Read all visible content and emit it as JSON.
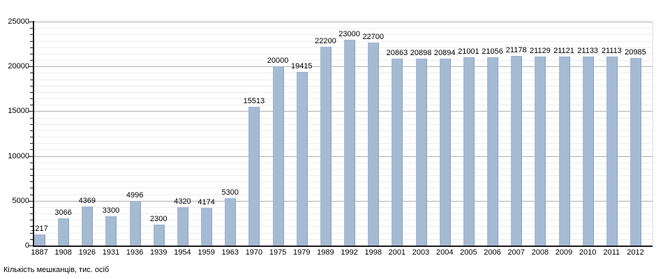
{
  "chart_data": {
    "type": "bar",
    "title": "",
    "xlabel": "",
    "ylabel": "",
    "caption": "Кількість мешканців, тис. осіб",
    "categories": [
      "1887",
      "1908",
      "1926",
      "1931",
      "1936",
      "1939",
      "1954",
      "1959",
      "1963",
      "1970",
      "1975",
      "1979",
      "1989",
      "1992",
      "1998",
      "2001",
      "2003",
      "2004",
      "2005",
      "2006",
      "2007",
      "2008",
      "2009",
      "2010",
      "2011",
      "2012"
    ],
    "values": [
      1217,
      3066,
      4369,
      3300,
      4996,
      2300,
      4320,
      4174,
      5300,
      15513,
      20000,
      19415,
      22200,
      23000,
      22700,
      20863,
      20898,
      20894,
      21001,
      21056,
      21178,
      21129,
      21121,
      21133,
      21113,
      20985
    ],
    "value_labels": [
      "1217",
      "3066",
      "4369",
      "3300",
      "4996",
      "2300",
      "4320",
      "4174",
      "5300",
      "15513",
      "20000",
      "19415",
      "22200",
      "23000",
      "22700",
      "20863",
      "20898",
      "20894",
      "21001",
      "21056",
      "21178",
      "21129",
      "21121",
      "21133",
      "21113",
      "20985"
    ],
    "ylim": [
      0,
      25000
    ],
    "yticks": [
      0,
      5000,
      10000,
      15000,
      20000,
      25000
    ],
    "ytick_labels": [
      "0",
      "5000",
      "10000",
      "15000",
      "20000",
      "25000"
    ],
    "minor_subdivisions_per_major": 7,
    "grid": "on",
    "legend": "none",
    "colors": {
      "bar_fill": "#a5bad3",
      "bar_edge": "#8aa2bd",
      "major_grid": "#b0b0b0",
      "minor_grid": "#ececec",
      "axis": "#1a1a1a",
      "text": "#000000",
      "background": "#ffffff"
    }
  }
}
